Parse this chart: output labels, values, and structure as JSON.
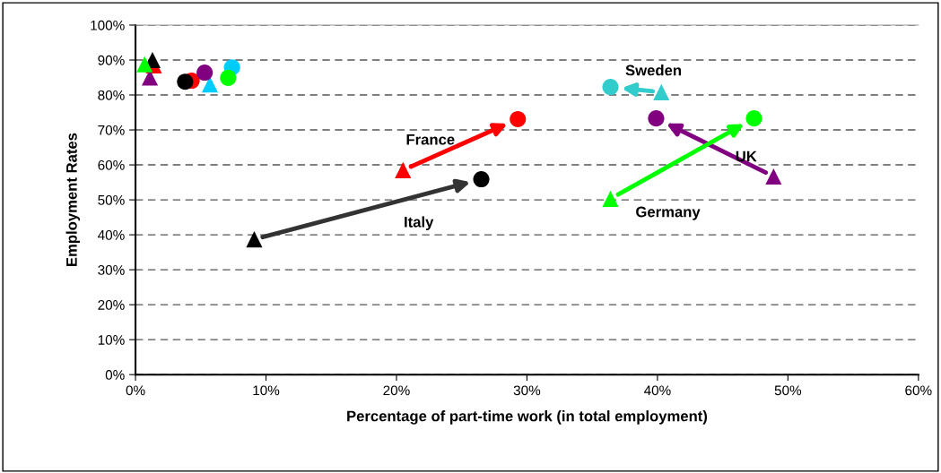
{
  "chart_data": {
    "type": "scatter",
    "xlabel": "Percentage of part-time work (in total employment)",
    "ylabel": "Employment Rates",
    "xlim": [
      0,
      60
    ],
    "xticks": [
      {
        "value": 0,
        "label": "0%"
      },
      {
        "value": 10,
        "label": "10%"
      },
      {
        "value": 20,
        "label": "20%"
      },
      {
        "value": 30,
        "label": "30%"
      },
      {
        "value": 40,
        "label": "40%"
      },
      {
        "value": 50,
        "label": "50%"
      },
      {
        "value": 60,
        "label": "60%"
      }
    ],
    "ylim": [
      0,
      100
    ],
    "yticks": [
      {
        "value": 0,
        "label": "0%"
      },
      {
        "value": 10,
        "label": "10%"
      },
      {
        "value": 20,
        "label": "20%"
      },
      {
        "value": 30,
        "label": "30%"
      },
      {
        "value": 40,
        "label": "40%"
      },
      {
        "value": 50,
        "label": "50%"
      },
      {
        "value": 60,
        "label": "60%"
      },
      {
        "value": 70,
        "label": "70%"
      },
      {
        "value": 80,
        "label": "80%"
      },
      {
        "value": 90,
        "label": "90%"
      },
      {
        "value": 100,
        "label": "100%"
      }
    ],
    "grid": "y",
    "legend": false,
    "series": [
      {
        "marker": "triangle",
        "color": "#ff0000",
        "x": [
          1.4,
          20.5
        ],
        "values": [
          88.5,
          58.5
        ]
      },
      {
        "marker": "triangle",
        "colors": [
          "#000000",
          "#000000"
        ],
        "x": [
          1.3,
          9.1
        ],
        "values": [
          90,
          38.7
        ]
      },
      {
        "marker": "triangle",
        "colors": [
          "#00ccff",
          "#33cccc"
        ],
        "x": [
          5.7,
          40.3
        ],
        "values": [
          83,
          80.8
        ]
      },
      {
        "marker": "triangle",
        "color": "#800080",
        "x": [
          1.1,
          48.9
        ],
        "values": [
          85,
          56.7
        ]
      },
      {
        "marker": "triangle",
        "color": "#00ff00",
        "x": [
          0.7,
          36.4
        ],
        "values": [
          88.8,
          50.3
        ]
      },
      {
        "marker": "circle",
        "color": "#ff0000",
        "x": [
          4.3,
          29.3
        ],
        "values": [
          84.1,
          73.1
        ]
      },
      {
        "marker": "circle",
        "color": "#000000",
        "x": [
          3.8,
          26.5
        ],
        "values": [
          83.8,
          55.9
        ]
      },
      {
        "marker": "circle",
        "colors": [
          "#00ccff",
          "#33cccc"
        ],
        "x": [
          7.4,
          36.4
        ],
        "values": [
          87.9,
          82.3
        ]
      },
      {
        "marker": "circle",
        "color": "#800080",
        "x": [
          5.3,
          39.9
        ],
        "values": [
          86.4,
          73.3
        ]
      },
      {
        "marker": "circle",
        "color": "#00ff00",
        "x": [
          7.1,
          47.4
        ],
        "values": [
          84.9,
          73.3
        ]
      }
    ],
    "annotations": [
      "France",
      "Italy",
      "Sweden",
      "UK",
      "Germany"
    ]
  }
}
